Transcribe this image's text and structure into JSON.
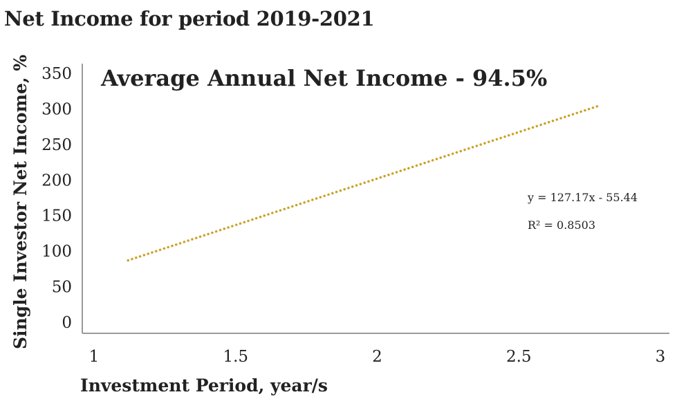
{
  "title": "Net Income for period 2019-2021",
  "chart_data": {
    "type": "line",
    "title": "Net Income for period 2019-2021",
    "annotation": "Average Annual Net Income - 94.5%",
    "xlabel": "Investment Period, year/s",
    "ylabel": "Single Investor Net Income, %",
    "xlim": [
      1,
      3
    ],
    "ylim": [
      0,
      350
    ],
    "xticks": [
      "1",
      "1.5",
      "2",
      "2.5",
      "3"
    ],
    "yticks": [
      "0",
      "50",
      "100",
      "150",
      "200",
      "250",
      "300",
      "350"
    ],
    "series": [
      {
        "style": "dotted",
        "color": "#c9a227",
        "x": [
          1.12,
          2.78
        ],
        "y": [
          87,
          304
        ]
      }
    ],
    "trendline_equation": "y = 127.17x - 55.44",
    "r_squared": "R² = 0.8503",
    "grid": false
  }
}
